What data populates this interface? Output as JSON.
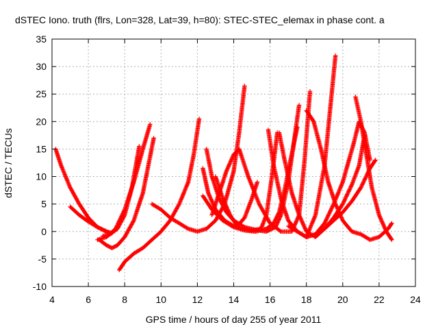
{
  "chart_data": {
    "type": "scatter",
    "title": "dSTEC Iono. truth (flrs, Lon=328, Lat=39, h=80): STEC-STEC_elemax in phase cont. a",
    "xlabel": "GPS time / hours of day 255 of year 2011",
    "ylabel": "dSTEC  / TECUs",
    "xlim": [
      4,
      24
    ],
    "ylim": [
      -10,
      35
    ],
    "xticks": [
      "4",
      "6",
      "8",
      "10",
      "12",
      "14",
      "16",
      "18",
      "20",
      "22",
      "24"
    ],
    "yticks": [
      "-10",
      "-5",
      "0",
      "5",
      "10",
      "15",
      "20",
      "25",
      "30",
      "35"
    ],
    "grid": true,
    "marker": "plus",
    "color": "#ff0000",
    "series": [
      {
        "x": [
          4.2,
          4.5,
          5.0,
          5.5,
          6.0,
          6.5,
          7.0,
          7.3
        ],
        "y": [
          15,
          12,
          8,
          5,
          2.5,
          0.8,
          0,
          -0.3
        ]
      },
      {
        "x": [
          5.0,
          5.5,
          6.0,
          6.5,
          7.0,
          7.2
        ],
        "y": [
          4.5,
          3,
          1.8,
          0.8,
          0,
          -0.5
        ]
      },
      {
        "x": [
          6.5,
          7.0,
          7.5,
          8.0,
          8.5,
          9.0,
          9.4
        ],
        "y": [
          -1.5,
          -1,
          0.5,
          4,
          9,
          15,
          19.5
        ]
      },
      {
        "x": [
          6.8,
          7.2,
          7.6,
          8.0,
          8.4,
          8.8
        ],
        "y": [
          -0.8,
          -0.5,
          0.5,
          3,
          8,
          15.5
        ]
      },
      {
        "x": [
          6.6,
          7.0,
          7.3,
          7.6,
          8.0,
          8.5,
          9.0,
          9.3,
          9.6
        ],
        "y": [
          -1.5,
          -2.5,
          -3,
          -2.5,
          -1,
          2,
          7,
          12,
          17
        ]
      },
      {
        "x": [
          7.7,
          8.0,
          8.5,
          9.0,
          9.5,
          10.0,
          10.5,
          11.0,
          11.5,
          11.8,
          12.1
        ],
        "y": [
          -7,
          -5.5,
          -4,
          -3,
          -1.5,
          0,
          2,
          5,
          9,
          14,
          20.5
        ]
      },
      {
        "x": [
          9.5,
          10.0,
          10.5,
          11.0,
          11.5,
          12.0,
          12.5,
          13.0,
          13.5,
          14.0,
          14.3,
          14.6
        ],
        "y": [
          5,
          4,
          2.5,
          1.5,
          0.5,
          0,
          0.5,
          2,
          5,
          11,
          18,
          26.5
        ]
      },
      {
        "x": [
          12.3,
          12.6,
          13.0,
          13.5,
          14.0,
          14.5,
          15.0,
          15.5,
          15.8,
          16.1,
          16.4
        ],
        "y": [
          11.5,
          7,
          4,
          2,
          1,
          0.5,
          0.2,
          0.5,
          3,
          10,
          18
        ]
      },
      {
        "x": [
          12.5,
          12.8,
          13.2,
          13.6,
          14.0,
          14.6,
          15.2,
          15.8,
          16.3,
          16.6,
          17.0,
          17.3,
          17.6
        ],
        "y": [
          15,
          10,
          6,
          3.5,
          2,
          0.8,
          0.3,
          0,
          0.8,
          3,
          9,
          16,
          23
        ]
      },
      {
        "x": [
          12.3,
          12.8,
          13.4,
          14.0,
          14.6,
          15.2,
          15.8,
          16.2,
          16.5,
          16.8,
          17.1,
          17.5
        ],
        "y": [
          6.5,
          4,
          2,
          0.8,
          0.2,
          0,
          0.5,
          1.5,
          3.5,
          7.5,
          12.5,
          19
        ]
      },
      {
        "x": [
          13.0,
          13.4,
          13.8,
          14.2,
          14.6,
          15.0,
          15.3
        ],
        "y": [
          10,
          6,
          3,
          1,
          2.5,
          6,
          9
        ]
      },
      {
        "x": [
          12.8,
          13.2,
          13.6,
          14.0,
          14.3,
          14.8,
          15.4,
          16.0,
          16.6,
          17.2,
          17.6,
          17.9,
          18.2
        ],
        "y": [
          3,
          7,
          11,
          14,
          15,
          10,
          5,
          1.5,
          0,
          0,
          3,
          13,
          25.5
        ]
      },
      {
        "x": [
          15.9,
          16.2,
          16.6,
          17.0,
          17.5,
          18.0,
          18.5,
          19.0,
          19.3,
          19.6
        ],
        "y": [
          18.5,
          12,
          6,
          2,
          0,
          -1,
          3,
          12,
          22,
          32
        ]
      },
      {
        "x": [
          16.5,
          16.8,
          17.2,
          17.6,
          18.0,
          18.5,
          19.0,
          19.5,
          20.0,
          20.5,
          20.9,
          21.2
        ],
        "y": [
          18,
          13,
          7,
          3,
          0,
          -1,
          0.5,
          2.5,
          5,
          8.5,
          12,
          17.5
        ]
      },
      {
        "x": [
          18.0,
          18.4,
          18.8,
          19.2,
          19.6,
          20.0,
          20.5,
          21.0,
          21.5,
          22.0,
          22.5,
          22.7
        ],
        "y": [
          22,
          20,
          15,
          9,
          5,
          2,
          0,
          -0.5,
          -1.5,
          -1,
          0.5,
          1.5
        ]
      },
      {
        "x": [
          17.0,
          17.5,
          18.0,
          18.5,
          19.0,
          19.5,
          20.0,
          20.3,
          20.6,
          20.9,
          21.2,
          21.5
        ],
        "y": [
          1,
          0,
          -1,
          -0.5,
          1.5,
          5,
          9,
          12.5,
          16,
          20,
          18,
          13
        ]
      },
      {
        "x": [
          20.7,
          21.0,
          21.3,
          21.6,
          22.0,
          22.4,
          22.7
        ],
        "y": [
          24.5,
          20,
          14,
          8,
          3,
          0,
          -1.5
        ]
      },
      {
        "x": [
          18.0,
          18.5,
          19.0,
          19.5,
          20.0,
          20.5,
          21.0,
          21.5,
          21.8
        ],
        "y": [
          -1,
          -0.5,
          0.5,
          2,
          3.5,
          5.5,
          8,
          11.5,
          13
        ]
      }
    ]
  }
}
